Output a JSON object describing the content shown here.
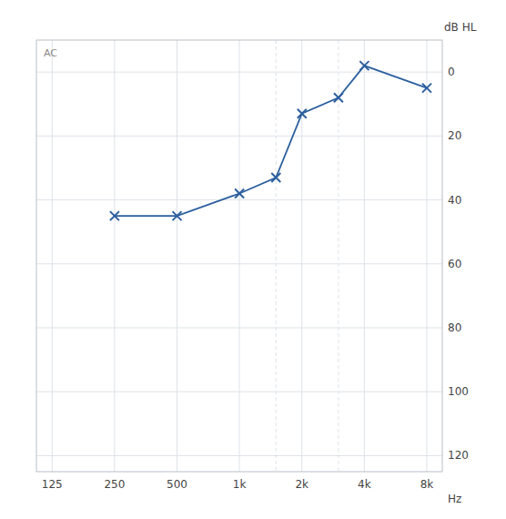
{
  "chart_data": {
    "type": "line",
    "x": [
      250,
      500,
      1000,
      1500,
      2000,
      3000,
      4000,
      8000
    ],
    "series": [
      {
        "values": [
          45,
          45,
          38,
          33,
          13,
          8,
          -2,
          5
        ],
        "color": "#2c5f9e",
        "marker": "x",
        "line_style": "solid"
      }
    ],
    "x_label": "Hz",
    "y_label": "dB HL",
    "annotations": [
      "AC"
    ],
    "log": "x",
    "xlim": [
      105,
      9500
    ],
    "xticks": [
      125,
      250,
      500,
      {
        "value": 1000,
        "label": "1k"
      },
      {
        "value": 2000,
        "label": "2k"
      },
      {
        "value": 4000,
        "label": "4k"
      },
      {
        "value": 8000,
        "label": "8k"
      }
    ],
    "ylim": [
      125,
      -10
    ],
    "yticks": [
      0,
      20,
      40,
      60,
      80,
      100,
      120
    ],
    "vlines": [
      1500,
      3000
    ],
    "grid": true
  }
}
